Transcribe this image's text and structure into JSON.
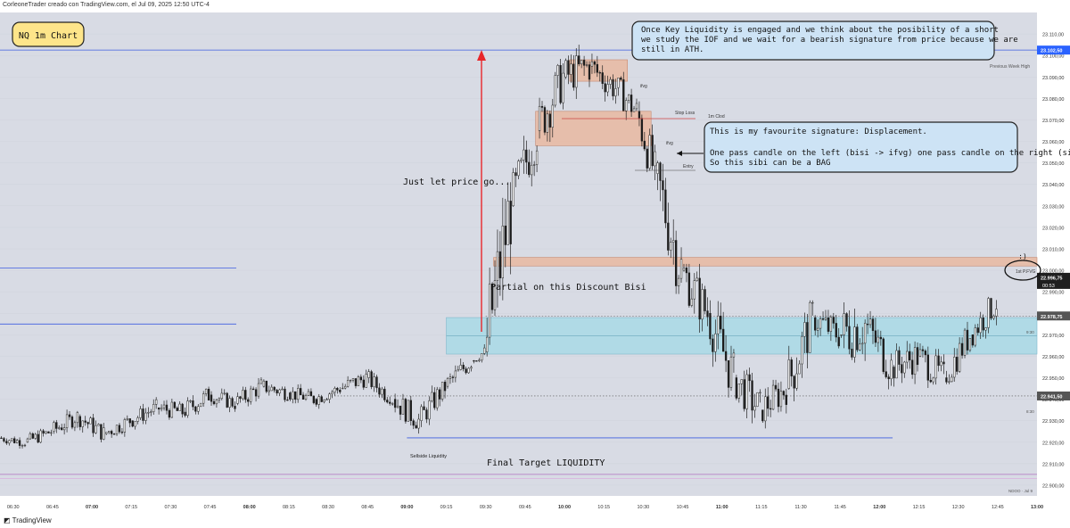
{
  "header": {
    "credit": "CorleoneTrader creado con TradingView.com, el Jul 09, 2025 12:50 UTC-4"
  },
  "footer": {
    "brand": "TradingView"
  },
  "colors": {
    "background": "#d8dbe4",
    "candle_up": "#2b2b2b",
    "candle_down": "#1a1a1a",
    "level_blue": "#3d5de0",
    "fvg_fill": "#e9b9a1",
    "bisi_fill": "#a9d9e6",
    "arrow_red": "#e8262a",
    "last_price_badge": "#1f1f1f",
    "pwh_badge": "#2a62ff"
  },
  "annotations": {
    "title_box": "NQ 1m Chart",
    "top_note": "Once Key Liquidity is engaged and we think about the posibility of a short we study the IOF and we wait for a bearish signature from price because we are still in ATH.",
    "mid_note_line1": "This is my favourite signature: Displacement.",
    "mid_note_line2": "One pass candle on the left (bisi -> ifvg) one pass candle on the right (sibi) = BPR",
    "mid_note_line3": "So this sibi can be a BAG",
    "just_let": "Just let price go...",
    "partial": "Partial on this Discount Bisi",
    "final_target": "Final Target LIQUIDITY",
    "sellside": "Sellside Liquidity",
    "smile": ":)",
    "ifvg_top": "ifvg",
    "ifvg_mid": "ifvg",
    "stop_loss": "Stop Loss",
    "one_m_clod": "1m Clod",
    "entry": "Entry",
    "first_pfvg": "1st P.FVG",
    "prev_week_high": "Previous Week High",
    "nddo": "NDOO · Jul 9",
    "mark_930": "9:30",
    "mark_830": "8:30"
  },
  "chart_data": {
    "type": "candlestick",
    "symbol": "NQ",
    "timeframe": "1m",
    "ylim": [
      22895,
      23120
    ],
    "y_ticks": [
      23110,
      23100,
      23090,
      23080,
      23070,
      23060,
      23050,
      23040,
      23030,
      23020,
      23010,
      23000,
      22990,
      22980,
      22970,
      22960,
      22950,
      22940,
      22930,
      22920,
      22910,
      22900
    ],
    "y_tick_labels": [
      "23.110,00",
      "23.100,00",
      "23.090,00",
      "23.080,00",
      "23.070,00",
      "23.060,00",
      "23.050,00",
      "23.040,00",
      "23.030,00",
      "23.020,00",
      "23.010,00",
      "23.000,00",
      "22.990,00",
      "22.980,00",
      "22.970,00",
      "22.960,00",
      "22.950,00",
      "22.940,00",
      "22.930,00",
      "22.920,00",
      "22.910,00",
      "22.900,00"
    ],
    "x_ticks": [
      "06:30",
      "06:45",
      "07:00",
      "07:15",
      "07:30",
      "07:45",
      "08:00",
      "08:15",
      "08:30",
      "08:45",
      "09:00",
      "09:15",
      "09:30",
      "09:45",
      "10:00",
      "10:15",
      "10:30",
      "10:45",
      "11:00",
      "11:15",
      "11:30",
      "11:45",
      "12:00",
      "12:15",
      "12:30",
      "12:45",
      "13:00"
    ],
    "x_bold": [
      "07:00",
      "08:00",
      "09:00",
      "10:00",
      "11:00",
      "12:00",
      "13:00"
    ],
    "x_start": "06:25",
    "x_end": "13:00",
    "last_price": {
      "value": 22996.75,
      "label": "22.996,75",
      "countdown": "00:53"
    },
    "levels": [
      {
        "name": "Previous Week High",
        "price": 23102.5,
        "label": "23.102,50",
        "from": "06:25",
        "to": "13:00"
      },
      {
        "name": "Left upper level",
        "price": 23001,
        "from": "06:25",
        "to": "07:55"
      },
      {
        "name": "Left lower level",
        "price": 22975,
        "from": "06:25",
        "to": "07:55"
      },
      {
        "name": "Sellside Liquidity",
        "price": 22922,
        "from": "09:00",
        "to": "12:05"
      },
      {
        "name": "9:30 open",
        "price": 22978.75,
        "label": "22.978,75",
        "from": "09:30",
        "to": "13:00"
      },
      {
        "name": "8:30 open",
        "price": 22941.5,
        "label": "22.941,50",
        "from": "08:30",
        "to": "13:00"
      },
      {
        "name": "NDOO",
        "price": 22905,
        "from": "06:25",
        "to": "13:00"
      }
    ],
    "zones": [
      {
        "name": "Bisi",
        "top": 22978,
        "bottom": 22961,
        "from": "09:15",
        "to": "13:00"
      },
      {
        "name": "1st P.FVG",
        "top": 23006,
        "bottom": 23002,
        "from": "09:33",
        "to": "13:00"
      },
      {
        "name": "ifvg (top)",
        "top": 23098,
        "bottom": 23088,
        "from": "10:02",
        "to": "10:24"
      },
      {
        "name": "ifvg (mid)",
        "top": 23074,
        "bottom": 23058,
        "from": "09:49",
        "to": "10:33"
      }
    ],
    "session_candles": [
      {
        "t": "06:25",
        "o": 22922,
        "h": 22926,
        "l": 22918,
        "c": 22920
      },
      {
        "t": "06:35",
        "o": 22920,
        "h": 22928,
        "l": 22917,
        "c": 22925
      },
      {
        "t": "06:45",
        "o": 22925,
        "h": 22936,
        "l": 22922,
        "c": 22932
      },
      {
        "t": "06:55",
        "o": 22932,
        "h": 22935,
        "l": 22920,
        "c": 22924
      },
      {
        "t": "07:05",
        "o": 22924,
        "h": 22934,
        "l": 22921,
        "c": 22930
      },
      {
        "t": "07:15",
        "o": 22930,
        "h": 22940,
        "l": 22926,
        "c": 22936
      },
      {
        "t": "07:25",
        "o": 22936,
        "h": 22944,
        "l": 22930,
        "c": 22934
      },
      {
        "t": "07:35",
        "o": 22934,
        "h": 22947,
        "l": 22931,
        "c": 22942
      },
      {
        "t": "07:45",
        "o": 22942,
        "h": 22946,
        "l": 22933,
        "c": 22938
      },
      {
        "t": "07:55",
        "o": 22938,
        "h": 22950,
        "l": 22935,
        "c": 22946
      },
      {
        "t": "08:05",
        "o": 22946,
        "h": 22951,
        "l": 22938,
        "c": 22943
      },
      {
        "t": "08:15",
        "o": 22943,
        "h": 22949,
        "l": 22937,
        "c": 22940
      },
      {
        "t": "08:25",
        "o": 22940,
        "h": 22948,
        "l": 22936,
        "c": 22945
      },
      {
        "t": "08:35",
        "o": 22945,
        "h": 22955,
        "l": 22940,
        "c": 22950
      },
      {
        "t": "08:45",
        "o": 22950,
        "h": 22953,
        "l": 22938,
        "c": 22940
      },
      {
        "t": "08:55",
        "o": 22940,
        "h": 22942,
        "l": 22922,
        "c": 22930
      },
      {
        "t": "09:05",
        "o": 22930,
        "h": 22948,
        "l": 22928,
        "c": 22946
      },
      {
        "t": "09:15",
        "o": 22946,
        "h": 22960,
        "l": 22943,
        "c": 22958
      },
      {
        "t": "09:25",
        "o": 22958,
        "h": 22965,
        "l": 22955,
        "c": 22962
      },
      {
        "t": "09:30",
        "o": 22962,
        "h": 23040,
        "l": 22960,
        "c": 23030
      },
      {
        "t": "09:40",
        "o": 23030,
        "h": 23070,
        "l": 23025,
        "c": 23065
      },
      {
        "t": "09:50",
        "o": 23065,
        "h": 23100,
        "l": 23060,
        "c": 23090
      },
      {
        "t": "10:00",
        "o": 23090,
        "h": 23111,
        "l": 23080,
        "c": 23095
      },
      {
        "t": "10:10",
        "o": 23095,
        "h": 23105,
        "l": 23078,
        "c": 23085
      },
      {
        "t": "10:20",
        "o": 23085,
        "h": 23095,
        "l": 23070,
        "c": 23074
      },
      {
        "t": "10:28",
        "o": 23074,
        "h": 23078,
        "l": 23040,
        "c": 23045
      },
      {
        "t": "10:35",
        "o": 23045,
        "h": 23050,
        "l": 22990,
        "c": 23000
      },
      {
        "t": "10:45",
        "o": 23000,
        "h": 23002,
        "l": 22962,
        "c": 22980
      },
      {
        "t": "10:55",
        "o": 22980,
        "h": 22985,
        "l": 22940,
        "c": 22950
      },
      {
        "t": "11:05",
        "o": 22950,
        "h": 22960,
        "l": 22926,
        "c": 22935
      },
      {
        "t": "11:15",
        "o": 22935,
        "h": 22948,
        "l": 22920,
        "c": 22945
      },
      {
        "t": "11:25",
        "o": 22945,
        "h": 22985,
        "l": 22940,
        "c": 22978
      },
      {
        "t": "11:35",
        "o": 22978,
        "h": 22988,
        "l": 22962,
        "c": 22970
      },
      {
        "t": "11:45",
        "o": 22970,
        "h": 22989,
        "l": 22940,
        "c": 22975
      },
      {
        "t": "11:55",
        "o": 22975,
        "h": 22980,
        "l": 22945,
        "c": 22955
      },
      {
        "t": "12:05",
        "o": 22955,
        "h": 22968,
        "l": 22940,
        "c": 22960
      },
      {
        "t": "12:15",
        "o": 22960,
        "h": 22965,
        "l": 22938,
        "c": 22950
      },
      {
        "t": "12:25",
        "o": 22950,
        "h": 22975,
        "l": 22948,
        "c": 22970
      },
      {
        "t": "12:35",
        "o": 22970,
        "h": 22990,
        "l": 22965,
        "c": 22985
      },
      {
        "t": "12:45",
        "o": 22985,
        "h": 23000,
        "l": 22980,
        "c": 22997
      }
    ]
  }
}
